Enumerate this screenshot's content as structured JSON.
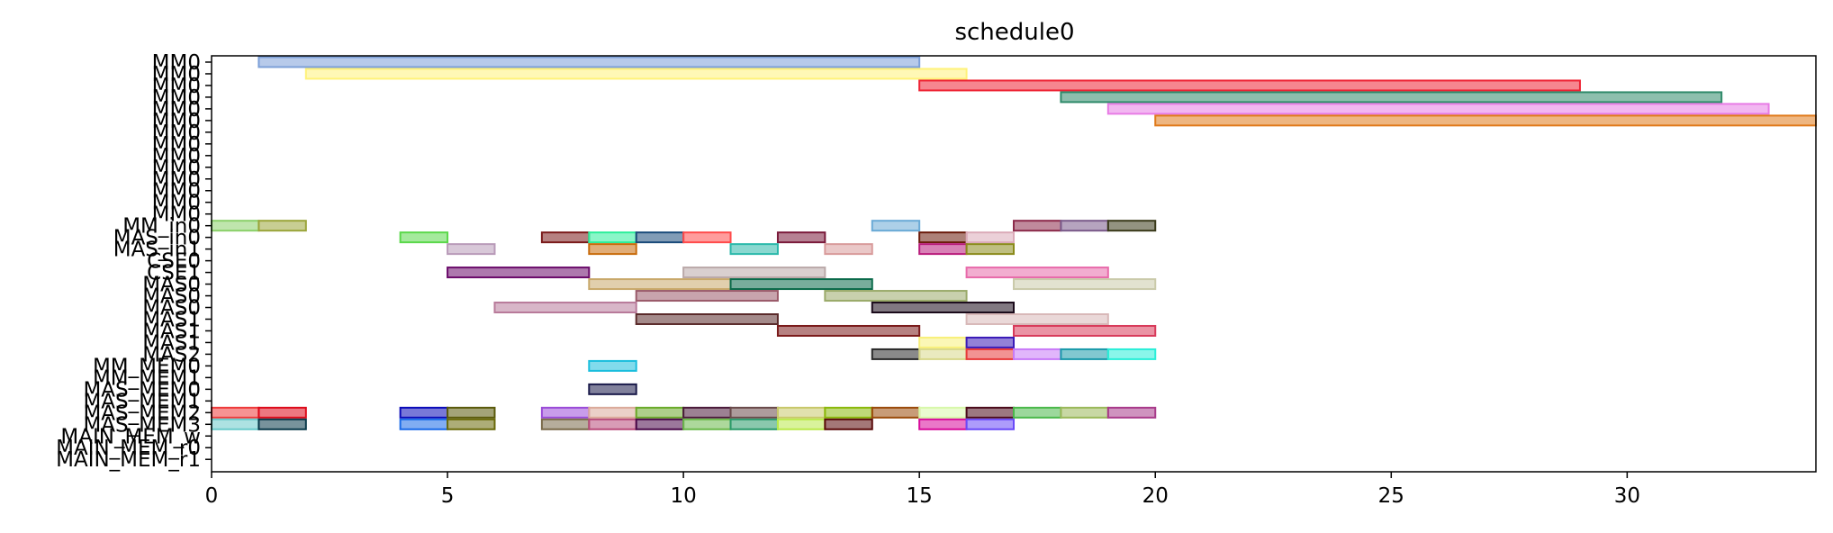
{
  "chart_data": {
    "type": "gantt",
    "title": "schedule0",
    "xlim": [
      0,
      34
    ],
    "xticks": [
      0,
      5,
      10,
      15,
      20,
      25,
      30
    ],
    "ylabels": [
      "MM0",
      "MM0",
      "MM0",
      "MM0",
      "MM0",
      "MM0",
      "MM0",
      "MM0",
      "MM0",
      "MM0",
      "MM0",
      "MM0",
      "MM0",
      "MM0",
      "MM_in0",
      "MAS_in0",
      "MAS_in1",
      "CSE0",
      "CSE1",
      "MAS0",
      "MAS0",
      "MAS0",
      "MAS1",
      "MAS1",
      "MAS1",
      "MAS2",
      "MM_MEM0",
      "MM_MEM1",
      "MAS_MEM0",
      "MAS_MEM1",
      "MAS_MEM2",
      "MAS_MEM3",
      "MAIN_MEM_w",
      "MAIN_MEM_r0",
      "MAIN_MEM_r1"
    ],
    "tasks": [
      {
        "row": 0,
        "start": 1,
        "end": 15,
        "color": "#7b9fd8"
      },
      {
        "row": 1,
        "start": 2,
        "end": 16,
        "color": "#fff27a"
      },
      {
        "row": 2,
        "start": 15,
        "end": 29,
        "color": "#ee2233"
      },
      {
        "row": 3,
        "start": 18,
        "end": 32,
        "color": "#2f8a6a"
      },
      {
        "row": 4,
        "start": 19,
        "end": 33,
        "color": "#e77be5"
      },
      {
        "row": 5,
        "start": 20,
        "end": 34,
        "color": "#e07a1a"
      },
      {
        "row": 14,
        "start": 0,
        "end": 1,
        "color": "#8bd06a"
      },
      {
        "row": 14,
        "start": 1,
        "end": 2,
        "color": "#9aa53a"
      },
      {
        "row": 14,
        "start": 14,
        "end": 15,
        "color": "#6aaad6"
      },
      {
        "row": 14,
        "start": 17,
        "end": 18,
        "color": "#8c2a4a"
      },
      {
        "row": 14,
        "start": 18,
        "end": 19,
        "color": "#7a5a8a"
      },
      {
        "row": 14,
        "start": 19,
        "end": 20,
        "color": "#3a3a1a"
      },
      {
        "row": 15,
        "start": 4,
        "end": 5,
        "color": "#5ad84a"
      },
      {
        "row": 15,
        "start": 7,
        "end": 8,
        "color": "#7a1a1a"
      },
      {
        "row": 15,
        "start": 8,
        "end": 9,
        "color": "#2aee9a"
      },
      {
        "row": 15,
        "start": 9,
        "end": 10,
        "color": "#1a4a7a"
      },
      {
        "row": 15,
        "start": 10,
        "end": 11,
        "color": "#ff4a4a"
      },
      {
        "row": 15,
        "start": 12,
        "end": 13,
        "color": "#7a1a3a"
      },
      {
        "row": 15,
        "start": 15,
        "end": 16,
        "color": "#6a1a0a"
      },
      {
        "row": 15,
        "start": 16,
        "end": 17,
        "color": "#dbaab8"
      },
      {
        "row": 16,
        "start": 5,
        "end": 6,
        "color": "#b89ab8"
      },
      {
        "row": 16,
        "start": 8,
        "end": 9,
        "color": "#c86a0a"
      },
      {
        "row": 16,
        "start": 11,
        "end": 12,
        "color": "#2ab8aa"
      },
      {
        "row": 16,
        "start": 13,
        "end": 14,
        "color": "#d89a9a"
      },
      {
        "row": 16,
        "start": 15,
        "end": 16,
        "color": "#b81a7a"
      },
      {
        "row": 16,
        "start": 16,
        "end": 17,
        "color": "#8a8a1a"
      },
      {
        "row": 18,
        "start": 5,
        "end": 8,
        "color": "#6a0a6a"
      },
      {
        "row": 18,
        "start": 10,
        "end": 13,
        "color": "#baa8a8"
      },
      {
        "row": 18,
        "start": 16,
        "end": 19,
        "color": "#e86aaa"
      },
      {
        "row": 19,
        "start": 8,
        "end": 11,
        "color": "#c8a86a"
      },
      {
        "row": 19,
        "start": 11,
        "end": 14,
        "color": "#0a6a4a"
      },
      {
        "row": 19,
        "start": 17,
        "end": 20,
        "color": "#cacaaa"
      },
      {
        "row": 20,
        "start": 9,
        "end": 12,
        "color": "#9a5a6a"
      },
      {
        "row": 20,
        "start": 13,
        "end": 16,
        "color": "#9aaa6a"
      },
      {
        "row": 21,
        "start": 6,
        "end": 9,
        "color": "#b87a9a"
      },
      {
        "row": 21,
        "start": 14,
        "end": 17,
        "color": "#1a0a1a"
      },
      {
        "row": 22,
        "start": 9,
        "end": 12,
        "color": "#5a2a2a"
      },
      {
        "row": 22,
        "start": 16,
        "end": 19,
        "color": "#d8b8b8"
      },
      {
        "row": 23,
        "start": 12,
        "end": 15,
        "color": "#7a1a1a"
      },
      {
        "row": 23,
        "start": 17,
        "end": 20,
        "color": "#d83a5a"
      },
      {
        "row": 24,
        "start": 15,
        "end": 16,
        "color": "#f8f07a"
      },
      {
        "row": 24,
        "start": 16,
        "end": 17,
        "color": "#3a1ab8"
      },
      {
        "row": 25,
        "start": 14,
        "end": 15,
        "color": "#2a2a2a"
      },
      {
        "row": 25,
        "start": 15,
        "end": 16,
        "color": "#d8d88a"
      },
      {
        "row": 25,
        "start": 16,
        "end": 17,
        "color": "#e83a3a"
      },
      {
        "row": 25,
        "start": 17,
        "end": 18,
        "color": "#c87af8"
      },
      {
        "row": 25,
        "start": 18,
        "end": 19,
        "color": "#1a9aaa"
      },
      {
        "row": 25,
        "start": 19,
        "end": 20,
        "color": "#2aeed8"
      },
      {
        "row": 26,
        "start": 8,
        "end": 9,
        "color": "#1abedd"
      },
      {
        "row": 28,
        "start": 8,
        "end": 9,
        "color": "#1a1a4a"
      },
      {
        "row": 30,
        "start": 0,
        "end": 1,
        "color": "#ee3a3a"
      },
      {
        "row": 30,
        "start": 1,
        "end": 2,
        "color": "#dd0a1a"
      },
      {
        "row": 30,
        "start": 4,
        "end": 5,
        "color": "#0a0ab8"
      },
      {
        "row": 30,
        "start": 5,
        "end": 6,
        "color": "#5a5a0a"
      },
      {
        "row": 30,
        "start": 7,
        "end": 8,
        "color": "#9a4ad8"
      },
      {
        "row": 30,
        "start": 8,
        "end": 9,
        "color": "#dbaa9a"
      },
      {
        "row": 30,
        "start": 9,
        "end": 10,
        "color": "#6aaa2a"
      },
      {
        "row": 30,
        "start": 10,
        "end": 11,
        "color": "#4a1a3a"
      },
      {
        "row": 30,
        "start": 11,
        "end": 12,
        "color": "#6a4a4a"
      },
      {
        "row": 30,
        "start": 12,
        "end": 13,
        "color": "#c8c86a"
      },
      {
        "row": 30,
        "start": 13,
        "end": 14,
        "color": "#8ab80a"
      },
      {
        "row": 30,
        "start": 14,
        "end": 15,
        "color": "#9a4a0a"
      },
      {
        "row": 30,
        "start": 15,
        "end": 16,
        "color": "#d8f8aa"
      },
      {
        "row": 30,
        "start": 16,
        "end": 17,
        "color": "#4a0a1a"
      },
      {
        "row": 30,
        "start": 17,
        "end": 18,
        "color": "#4ab84a"
      },
      {
        "row": 30,
        "start": 18,
        "end": 19,
        "color": "#9ab85a"
      },
      {
        "row": 30,
        "start": 19,
        "end": 20,
        "color": "#a83a8a"
      },
      {
        "row": 31,
        "start": 0,
        "end": 1,
        "color": "#6acaca"
      },
      {
        "row": 31,
        "start": 1,
        "end": 2,
        "color": "#0a3a4a"
      },
      {
        "row": 31,
        "start": 4,
        "end": 5,
        "color": "#1a6ae8"
      },
      {
        "row": 31,
        "start": 5,
        "end": 6,
        "color": "#6a6a0a"
      },
      {
        "row": 31,
        "start": 7,
        "end": 8,
        "color": "#7a6a4a"
      },
      {
        "row": 31,
        "start": 8,
        "end": 9,
        "color": "#b84a7a"
      },
      {
        "row": 31,
        "start": 9,
        "end": 10,
        "color": "#4a0a4a"
      },
      {
        "row": 31,
        "start": 10,
        "end": 11,
        "color": "#6ab84a"
      },
      {
        "row": 31,
        "start": 11,
        "end": 12,
        "color": "#2a9a6a"
      },
      {
        "row": 31,
        "start": 12,
        "end": 13,
        "color": "#baea4a"
      },
      {
        "row": 31,
        "start": 13,
        "end": 14,
        "color": "#5a0a0a"
      },
      {
        "row": 31,
        "start": 15,
        "end": 16,
        "color": "#d80a9a"
      },
      {
        "row": 31,
        "start": 16,
        "end": 17,
        "color": "#6a4af8"
      }
    ]
  }
}
